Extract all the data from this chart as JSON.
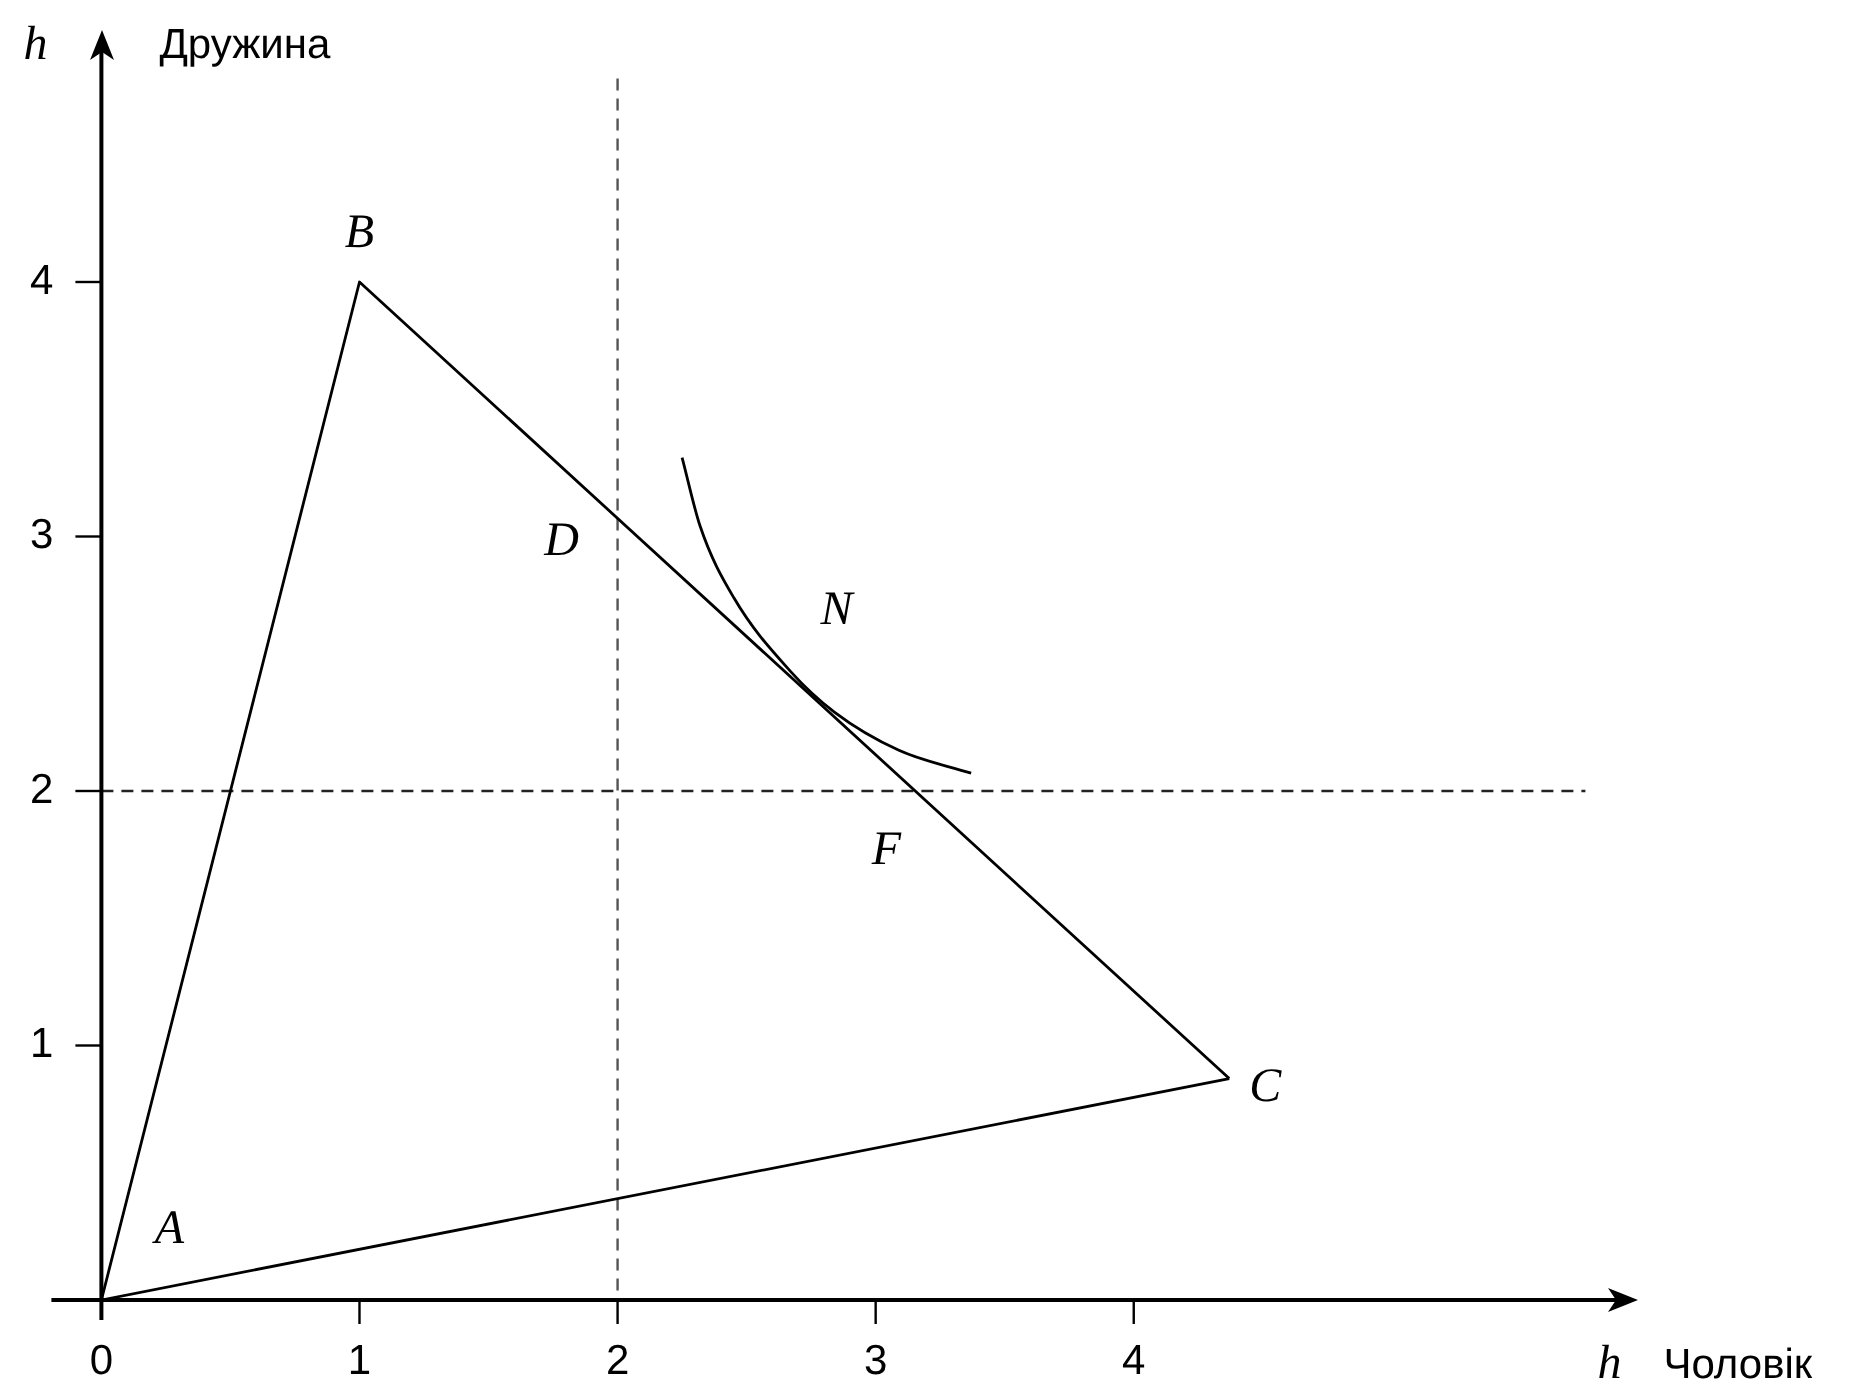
{
  "chart_data": {
    "type": "line",
    "xlabel": "h Чоловік",
    "ylabel": "h Дружина",
    "xlim": [
      0,
      5.75
    ],
    "ylim": [
      0,
      4.8
    ],
    "xticks": [
      0,
      1,
      2,
      3,
      4
    ],
    "yticks": [
      1,
      2,
      3,
      4
    ],
    "marker": "none",
    "series": [
      {
        "color": "#000000",
        "x": [
          0,
          1,
          4.37
        ],
        "values": [
          0,
          4,
          0.87
        ]
      },
      {
        "color": "#000000",
        "x": [
          0,
          4.37
        ],
        "values": [
          0,
          0.87
        ]
      },
      {
        "color": "#000000",
        "x": [
          2.25,
          2.32,
          2.45,
          2.67,
          2.84,
          3.09,
          3.37
        ],
        "values": [
          3.31,
          3.04,
          2.76,
          2.47,
          2.31,
          2.16,
          2.07
        ]
      }
    ],
    "ref_lines": [
      {
        "axis": "x",
        "value": 2,
        "line_style": "dashed",
        "color": "#555555"
      },
      {
        "axis": "y",
        "value": 2,
        "line_style": "dashed",
        "color": "#222222"
      }
    ],
    "annotations": [
      {
        "text": "A",
        "x": 0,
        "y": 0
      },
      {
        "text": "B",
        "x": 1,
        "y": 4
      },
      {
        "text": "C",
        "x": 4.37,
        "y": 0.87
      },
      {
        "text": "D",
        "x": 2,
        "y": 3.07
      },
      {
        "text": "N",
        "x": 2.67,
        "y": 2.47
      },
      {
        "text": "F",
        "x": 3.15,
        "y": 2
      }
    ]
  }
}
